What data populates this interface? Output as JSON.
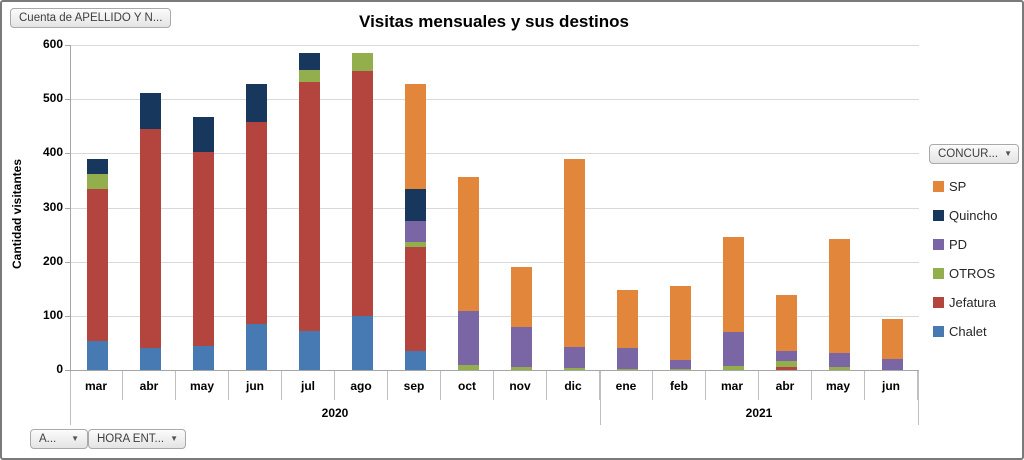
{
  "pivot_buttons": {
    "value_field": "Cuenta de APELLIDO Y N...",
    "legend_field": "CONCUR...",
    "axis_field_1": "A...",
    "axis_field_2": "HORA ENT...",
    "arrow": "▼"
  },
  "chart_data": {
    "type": "bar",
    "stacked": true,
    "title": "Visitas mensuales y sus destinos",
    "xlabel": "",
    "ylabel": "Cantidad visitantes",
    "ylim": [
      0,
      600
    ],
    "yticks": [
      0,
      100,
      200,
      300,
      400,
      500,
      600
    ],
    "grid": true,
    "legend_position": "right",
    "categories": [
      "mar",
      "abr",
      "may",
      "jun",
      "jul",
      "ago",
      "sep",
      "oct",
      "nov",
      "dic",
      "ene",
      "feb",
      "mar",
      "abr",
      "may",
      "jun"
    ],
    "year_groups": [
      {
        "label": "2020",
        "span": 10
      },
      {
        "label": "2021",
        "span": 6
      }
    ],
    "series": [
      {
        "name": "Chalet",
        "color": "#4779B3",
        "values": [
          54,
          40,
          45,
          85,
          72,
          100,
          36,
          0,
          0,
          0,
          0,
          0,
          0,
          0,
          0,
          0
        ]
      },
      {
        "name": "Jefatura",
        "color": "#B3443E",
        "values": [
          280,
          405,
          357,
          373,
          459,
          452,
          192,
          0,
          0,
          0,
          0,
          0,
          0,
          6,
          0,
          0
        ]
      },
      {
        "name": "OTROS",
        "color": "#93AF4D",
        "values": [
          27,
          0,
          0,
          0,
          23,
          33,
          8,
          10,
          5,
          3,
          2,
          2,
          8,
          10,
          6,
          0
        ]
      },
      {
        "name": "PD",
        "color": "#7A66A5",
        "values": [
          0,
          0,
          0,
          0,
          0,
          0,
          40,
          99,
          75,
          40,
          38,
          16,
          62,
          19,
          25,
          20
        ]
      },
      {
        "name": "Quincho",
        "color": "#17375D",
        "values": [
          29,
          67,
          65,
          70,
          31,
          0,
          58,
          0,
          0,
          0,
          0,
          0,
          0,
          0,
          0,
          0
        ]
      },
      {
        "name": "SP",
        "color": "#E2863B",
        "values": [
          0,
          0,
          0,
          0,
          0,
          0,
          194,
          247,
          110,
          347,
          107,
          137,
          175,
          103,
          211,
          75
        ]
      }
    ],
    "legend_order": [
      "SP",
      "Quincho",
      "PD",
      "OTROS",
      "Jefatura",
      "Chalet"
    ]
  },
  "colors": {
    "gridline": "#D9D9D9",
    "axis": "#A6A6A6",
    "separator": "#BFBFBF"
  }
}
